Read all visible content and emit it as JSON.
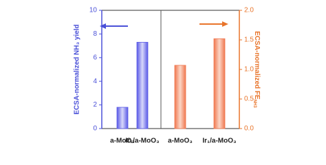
{
  "chart_data": {
    "type": "bar",
    "categories": [
      "a-MoO₃",
      "Ir₁/a-MoO₃",
      "a-MoO₃",
      "Ir₁/a-MoO₃"
    ],
    "series": [
      {
        "color": "#5a5ae6",
        "values": [
          1.8,
          7.3,
          null,
          null
        ]
      },
      {
        "color": "#f07850",
        "axis": "y2",
        "values": [
          null,
          null,
          1.07,
          1.52
        ]
      }
    ],
    "ylabel": "ECSA-normalized NH₃ yield",
    "y2label": "ECSA-normalized FE",
    "y2label_subscript": "NH3",
    "ylim": [
      0,
      10
    ],
    "yticks": [
      0,
      2,
      4,
      6,
      8,
      10
    ],
    "y2lim": [
      0,
      2
    ],
    "y2ticks": [
      {
        "value": 0,
        "label": "0.0"
      },
      0.5,
      {
        "value": 1,
        "label": "1.0"
      },
      1.5,
      {
        "value": 2,
        "label": "2.0"
      }
    ],
    "ycolor": "#4a50d8",
    "y2color": "#e8742a"
  }
}
